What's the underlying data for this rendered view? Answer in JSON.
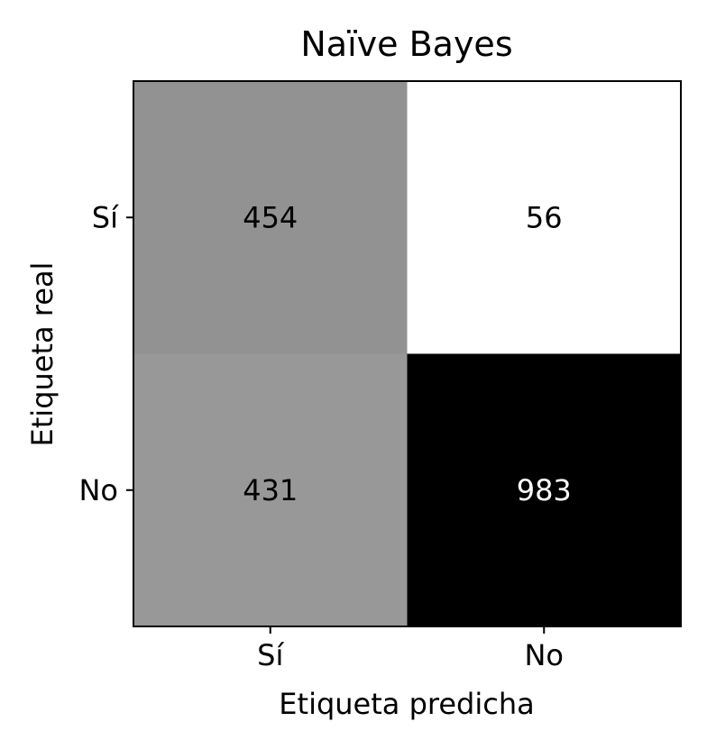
{
  "chart_data": {
    "type": "heatmap",
    "title": "Naïve Bayes",
    "xlabel": "Etiqueta predicha",
    "ylabel": "Etiqueta real",
    "x_categories": [
      "Sí",
      "No"
    ],
    "y_categories": [
      "Sí",
      "No"
    ],
    "values": [
      [
        454,
        56
      ],
      [
        431,
        983
      ]
    ],
    "colormap": "greys",
    "color_range": [
      56,
      983
    ],
    "cell_label_colors": {
      "dark": "#ffffff",
      "light": "#000000"
    }
  }
}
